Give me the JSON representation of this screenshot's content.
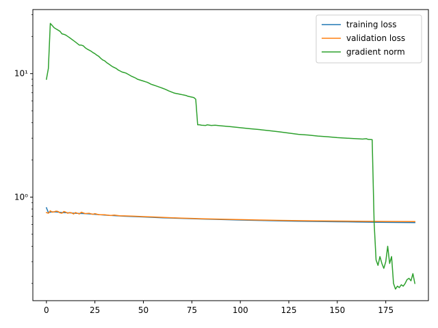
{
  "chart_data": {
    "type": "line",
    "title": "",
    "xlabel": "",
    "ylabel": "",
    "y_scale": "log",
    "xlim": [
      -7,
      197
    ],
    "ylim": [
      0.145,
      33
    ],
    "x_ticks": [
      0,
      25,
      50,
      75,
      100,
      125,
      150,
      175
    ],
    "y_ticks": [
      {
        "value": 1,
        "label": "10⁰"
      },
      {
        "value": 10,
        "label": "10¹"
      }
    ],
    "grid": false,
    "legend_position": "top-right",
    "series": [
      {
        "name": "training loss",
        "color": "#1f77b4",
        "points": [
          [
            0,
            0.82
          ],
          [
            1,
            0.75
          ],
          [
            2,
            0.755
          ],
          [
            3,
            0.76
          ],
          [
            5,
            0.758
          ],
          [
            8,
            0.75
          ],
          [
            12,
            0.745
          ],
          [
            15,
            0.74
          ],
          [
            20,
            0.735
          ],
          [
            25,
            0.725
          ],
          [
            30,
            0.715
          ],
          [
            40,
            0.7
          ],
          [
            50,
            0.69
          ],
          [
            60,
            0.68
          ],
          [
            70,
            0.672
          ],
          [
            80,
            0.665
          ],
          [
            90,
            0.658
          ],
          [
            100,
            0.652
          ],
          [
            110,
            0.647
          ],
          [
            120,
            0.642
          ],
          [
            130,
            0.638
          ],
          [
            140,
            0.635
          ],
          [
            150,
            0.632
          ],
          [
            160,
            0.629
          ],
          [
            170,
            0.626
          ],
          [
            180,
            0.624
          ],
          [
            190,
            0.622
          ]
        ]
      },
      {
        "name": "validation loss",
        "color": "#ff7f0e",
        "points": [
          [
            0,
            0.75
          ],
          [
            1,
            0.74
          ],
          [
            2,
            0.775
          ],
          [
            3,
            0.755
          ],
          [
            4,
            0.76
          ],
          [
            5,
            0.77
          ],
          [
            6,
            0.765
          ],
          [
            7,
            0.745
          ],
          [
            8,
            0.74
          ],
          [
            9,
            0.765
          ],
          [
            10,
            0.755
          ],
          [
            11,
            0.74
          ],
          [
            12,
            0.75
          ],
          [
            13,
            0.745
          ],
          [
            14,
            0.73
          ],
          [
            15,
            0.75
          ],
          [
            16,
            0.74
          ],
          [
            17,
            0.73
          ],
          [
            18,
            0.755
          ],
          [
            19,
            0.745
          ],
          [
            20,
            0.735
          ],
          [
            22,
            0.74
          ],
          [
            24,
            0.725
          ],
          [
            25,
            0.735
          ],
          [
            27,
            0.72
          ],
          [
            30,
            0.72
          ],
          [
            33,
            0.71
          ],
          [
            35,
            0.715
          ],
          [
            38,
            0.705
          ],
          [
            40,
            0.705
          ],
          [
            45,
            0.7
          ],
          [
            50,
            0.695
          ],
          [
            55,
            0.69
          ],
          [
            60,
            0.685
          ],
          [
            65,
            0.68
          ],
          [
            70,
            0.675
          ],
          [
            75,
            0.672
          ],
          [
            80,
            0.668
          ],
          [
            90,
            0.662
          ],
          [
            100,
            0.657
          ],
          [
            110,
            0.652
          ],
          [
            120,
            0.648
          ],
          [
            130,
            0.645
          ],
          [
            140,
            0.642
          ],
          [
            150,
            0.64
          ],
          [
            160,
            0.638
          ],
          [
            170,
            0.636
          ],
          [
            180,
            0.635
          ],
          [
            190,
            0.634
          ]
        ]
      },
      {
        "name": "gradient norm",
        "color": "#2ca02c",
        "points": [
          [
            0,
            9.0
          ],
          [
            1,
            11.0
          ],
          [
            2,
            25.5
          ],
          [
            3,
            24.5
          ],
          [
            4,
            23.5
          ],
          [
            5,
            23.0
          ],
          [
            6,
            22.5
          ],
          [
            7,
            22.0
          ],
          [
            8,
            21.0
          ],
          [
            9,
            20.8
          ],
          [
            10,
            20.5
          ],
          [
            11,
            20.0
          ],
          [
            12,
            19.5
          ],
          [
            13,
            19.0
          ],
          [
            14,
            18.5
          ],
          [
            15,
            18.0
          ],
          [
            16,
            17.5
          ],
          [
            17,
            17.0
          ],
          [
            18,
            17.0
          ],
          [
            19,
            16.8
          ],
          [
            20,
            16.2
          ],
          [
            21,
            15.8
          ],
          [
            22,
            15.5
          ],
          [
            23,
            15.2
          ],
          [
            24,
            14.8
          ],
          [
            25,
            14.5
          ],
          [
            26,
            14.1
          ],
          [
            27,
            13.8
          ],
          [
            28,
            13.3
          ],
          [
            29,
            12.9
          ],
          [
            30,
            12.7
          ],
          [
            31,
            12.3
          ],
          [
            32,
            12.0
          ],
          [
            33,
            11.7
          ],
          [
            34,
            11.4
          ],
          [
            35,
            11.2
          ],
          [
            36,
            11.0
          ],
          [
            37,
            10.7
          ],
          [
            38,
            10.5
          ],
          [
            39,
            10.3
          ],
          [
            40,
            10.2
          ],
          [
            41,
            10.1
          ],
          [
            42,
            9.9
          ],
          [
            43,
            9.7
          ],
          [
            44,
            9.5
          ],
          [
            45,
            9.35
          ],
          [
            46,
            9.2
          ],
          [
            47,
            9.0
          ],
          [
            48,
            8.9
          ],
          [
            49,
            8.8
          ],
          [
            50,
            8.7
          ],
          [
            51,
            8.6
          ],
          [
            52,
            8.5
          ],
          [
            53,
            8.35
          ],
          [
            54,
            8.2
          ],
          [
            55,
            8.1
          ],
          [
            56,
            8.0
          ],
          [
            57,
            7.9
          ],
          [
            58,
            7.8
          ],
          [
            59,
            7.7
          ],
          [
            60,
            7.6
          ],
          [
            61,
            7.5
          ],
          [
            62,
            7.38
          ],
          [
            63,
            7.25
          ],
          [
            64,
            7.15
          ],
          [
            65,
            7.05
          ],
          [
            66,
            6.95
          ],
          [
            67,
            6.9
          ],
          [
            68,
            6.85
          ],
          [
            69,
            6.8
          ],
          [
            70,
            6.75
          ],
          [
            71,
            6.7
          ],
          [
            72,
            6.65
          ],
          [
            73,
            6.55
          ],
          [
            74,
            6.5
          ],
          [
            75,
            6.45
          ],
          [
            76,
            6.4
          ],
          [
            77,
            6.2
          ],
          [
            78,
            3.85
          ],
          [
            79,
            3.85
          ],
          [
            80,
            3.82
          ],
          [
            82,
            3.8
          ],
          [
            83,
            3.85
          ],
          [
            85,
            3.8
          ],
          [
            87,
            3.82
          ],
          [
            90,
            3.78
          ],
          [
            95,
            3.72
          ],
          [
            100,
            3.65
          ],
          [
            105,
            3.58
          ],
          [
            110,
            3.52
          ],
          [
            115,
            3.45
          ],
          [
            120,
            3.38
          ],
          [
            125,
            3.3
          ],
          [
            130,
            3.22
          ],
          [
            135,
            3.18
          ],
          [
            140,
            3.12
          ],
          [
            145,
            3.08
          ],
          [
            150,
            3.03
          ],
          [
            155,
            3.0
          ],
          [
            160,
            2.97
          ],
          [
            163,
            2.95
          ],
          [
            165,
            2.97
          ],
          [
            166,
            2.93
          ],
          [
            168,
            2.92
          ],
          [
            169,
            0.62
          ],
          [
            170,
            0.31
          ],
          [
            171,
            0.28
          ],
          [
            172,
            0.33
          ],
          [
            173,
            0.29
          ],
          [
            174,
            0.265
          ],
          [
            175,
            0.3
          ],
          [
            176,
            0.4
          ],
          [
            177,
            0.29
          ],
          [
            178,
            0.33
          ],
          [
            179,
            0.2
          ],
          [
            180,
            0.18
          ],
          [
            181,
            0.19
          ],
          [
            182,
            0.185
          ],
          [
            183,
            0.195
          ],
          [
            184,
            0.19
          ],
          [
            185,
            0.2
          ],
          [
            186,
            0.215
          ],
          [
            187,
            0.22
          ],
          [
            188,
            0.21
          ],
          [
            189,
            0.24
          ],
          [
            190,
            0.2
          ]
        ]
      }
    ]
  }
}
